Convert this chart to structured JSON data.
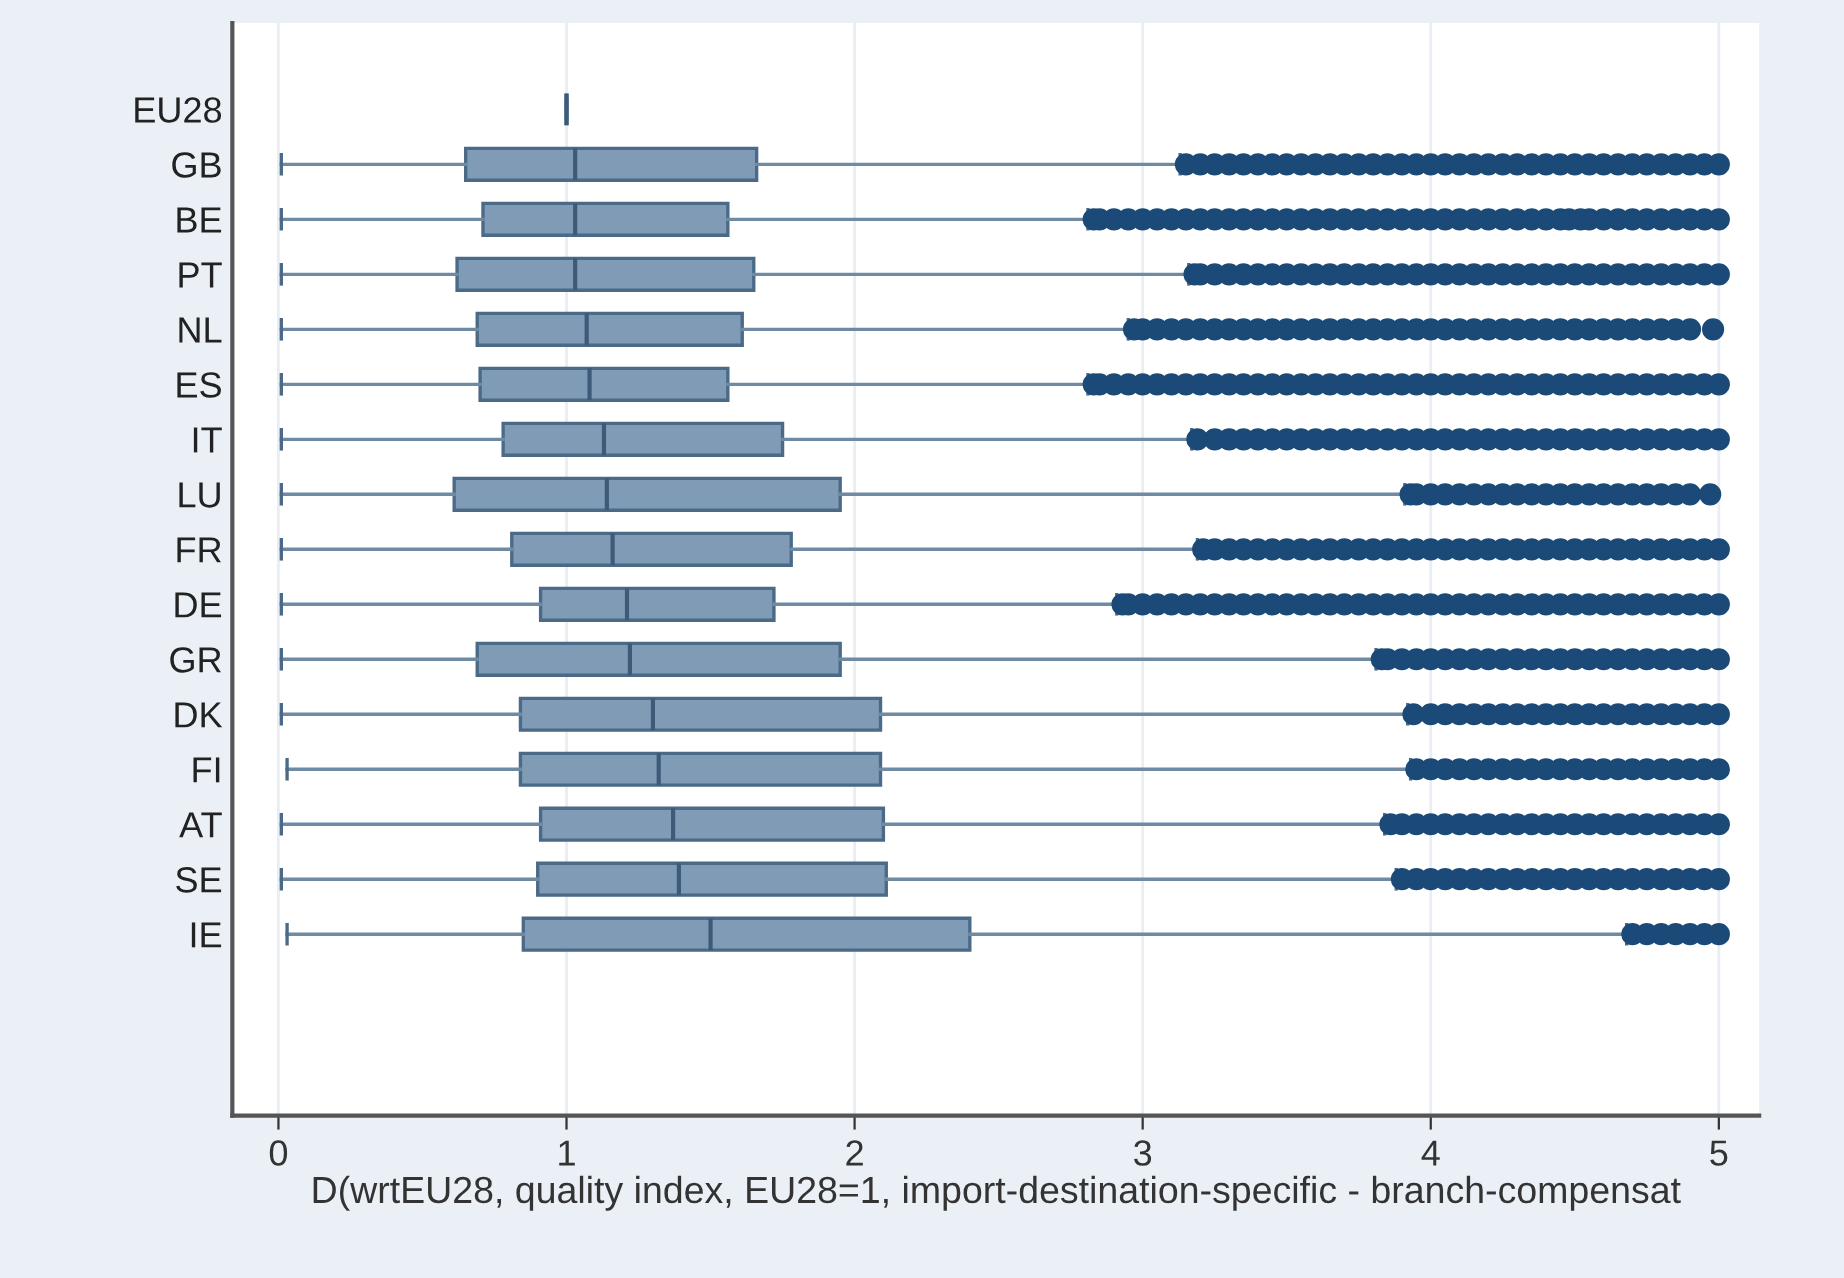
{
  "chart_data": {
    "type": "box",
    "orientation": "horizontal",
    "categories": [
      "EU28",
      "GB",
      "BE",
      "PT",
      "NL",
      "ES",
      "IT",
      "LU",
      "FR",
      "DE",
      "GR",
      "DK",
      "FI",
      "AT",
      "SE",
      "IE"
    ],
    "series": [
      {
        "color": "#7f9bb5",
        "boxes": [
          {
            "low": 1,
            "q1": 1,
            "median": 1,
            "q3": 1,
            "high": 1
          },
          {
            "low": 0.01,
            "q1": 0.65,
            "median": 1.03,
            "q3": 1.66,
            "high": 3.13,
            "outliers": [
              3.15,
              3.2,
              3.25,
              3.3,
              3.35,
              3.4,
              3.45,
              3.5,
              3.55,
              3.6,
              3.65,
              3.7,
              3.75,
              3.8,
              3.85,
              3.9,
              3.95,
              4,
              4.05,
              4.1,
              4.15,
              4.2,
              4.25,
              4.3,
              4.35,
              4.4,
              4.45,
              4.5,
              4.55,
              4.6,
              4.65,
              4.7,
              4.75,
              4.8,
              4.85,
              4.9,
              4.95,
              5
            ]
          },
          {
            "low": 0.01,
            "q1": 0.71,
            "median": 1.03,
            "q3": 1.56,
            "high": 2.81,
            "outliers": [
              2.83,
              2.85,
              2.9,
              2.95,
              3,
              3.05,
              3.1,
              3.15,
              3.2,
              3.25,
              3.3,
              3.35,
              3.4,
              3.45,
              3.5,
              3.55,
              3.6,
              3.65,
              3.7,
              3.75,
              3.8,
              3.85,
              3.9,
              3.95,
              4,
              4.05,
              4.1,
              4.15,
              4.2,
              4.25,
              4.3,
              4.35,
              4.4,
              4.45,
              4.48,
              4.52,
              4.55,
              4.6,
              4.65,
              4.7,
              4.75,
              4.8,
              4.85,
              4.9,
              4.95,
              5
            ]
          },
          {
            "low": 0.01,
            "q1": 0.62,
            "median": 1.03,
            "q3": 1.65,
            "high": 3.16,
            "outliers": [
              3.18,
              3.2,
              3.25,
              3.3,
              3.35,
              3.4,
              3.45,
              3.5,
              3.55,
              3.6,
              3.65,
              3.7,
              3.75,
              3.8,
              3.85,
              3.9,
              3.95,
              4,
              4.05,
              4.1,
              4.15,
              4.2,
              4.25,
              4.3,
              4.35,
              4.4,
              4.45,
              4.5,
              4.55,
              4.6,
              4.65,
              4.7,
              4.75,
              4.8,
              4.85,
              4.9,
              4.95,
              5
            ]
          },
          {
            "low": 0.01,
            "q1": 0.69,
            "median": 1.07,
            "q3": 1.61,
            "high": 2.95,
            "outliers": [
              2.97,
              3,
              3.05,
              3.1,
              3.15,
              3.2,
              3.25,
              3.3,
              3.35,
              3.4,
              3.45,
              3.5,
              3.55,
              3.6,
              3.65,
              3.7,
              3.75,
              3.8,
              3.85,
              3.9,
              3.95,
              4,
              4.05,
              4.1,
              4.15,
              4.2,
              4.25,
              4.3,
              4.35,
              4.4,
              4.45,
              4.5,
              4.55,
              4.6,
              4.65,
              4.7,
              4.75,
              4.8,
              4.85,
              4.9,
              4.98
            ]
          },
          {
            "low": 0.01,
            "q1": 0.7,
            "median": 1.08,
            "q3": 1.56,
            "high": 2.81,
            "outliers": [
              2.83,
              2.85,
              2.9,
              2.95,
              3,
              3.05,
              3.1,
              3.15,
              3.2,
              3.25,
              3.3,
              3.35,
              3.4,
              3.45,
              3.5,
              3.55,
              3.6,
              3.65,
              3.7,
              3.75,
              3.8,
              3.85,
              3.9,
              3.95,
              4,
              4.05,
              4.1,
              4.15,
              4.2,
              4.25,
              4.3,
              4.35,
              4.4,
              4.45,
              4.5,
              4.55,
              4.6,
              4.65,
              4.7,
              4.75,
              4.8,
              4.85,
              4.9,
              4.95,
              5
            ]
          },
          {
            "low": 0.01,
            "q1": 0.78,
            "median": 1.13,
            "q3": 1.75,
            "high": 3.17,
            "outliers": [
              3.19,
              3.25,
              3.3,
              3.35,
              3.4,
              3.45,
              3.5,
              3.55,
              3.6,
              3.65,
              3.7,
              3.75,
              3.8,
              3.85,
              3.9,
              3.95,
              4,
              4.05,
              4.1,
              4.15,
              4.2,
              4.25,
              4.3,
              4.35,
              4.4,
              4.45,
              4.5,
              4.55,
              4.6,
              4.65,
              4.7,
              4.75,
              4.8,
              4.85,
              4.9,
              4.95,
              5
            ]
          },
          {
            "low": 0.01,
            "q1": 0.61,
            "median": 1.14,
            "q3": 1.95,
            "high": 3.91,
            "outliers": [
              3.93,
              3.95,
              4,
              4.05,
              4.1,
              4.15,
              4.2,
              4.25,
              4.3,
              4.35,
              4.4,
              4.45,
              4.5,
              4.55,
              4.6,
              4.65,
              4.7,
              4.75,
              4.8,
              4.85,
              4.9,
              4.97
            ]
          },
          {
            "low": 0.01,
            "q1": 0.81,
            "median": 1.16,
            "q3": 1.78,
            "high": 3.19,
            "outliers": [
              3.21,
              3.25,
              3.3,
              3.35,
              3.4,
              3.45,
              3.5,
              3.55,
              3.6,
              3.65,
              3.7,
              3.75,
              3.8,
              3.85,
              3.9,
              3.95,
              4,
              4.05,
              4.1,
              4.15,
              4.2,
              4.25,
              4.3,
              4.35,
              4.4,
              4.45,
              4.5,
              4.55,
              4.6,
              4.65,
              4.7,
              4.75,
              4.8,
              4.85,
              4.9,
              4.95,
              5
            ]
          },
          {
            "low": 0.01,
            "q1": 0.91,
            "median": 1.21,
            "q3": 1.72,
            "high": 2.91,
            "outliers": [
              2.93,
              2.95,
              3,
              3.05,
              3.1,
              3.15,
              3.2,
              3.25,
              3.3,
              3.35,
              3.4,
              3.45,
              3.5,
              3.55,
              3.6,
              3.65,
              3.7,
              3.75,
              3.8,
              3.85,
              3.9,
              3.95,
              4,
              4.05,
              4.1,
              4.15,
              4.2,
              4.25,
              4.3,
              4.35,
              4.4,
              4.45,
              4.5,
              4.55,
              4.6,
              4.65,
              4.7,
              4.75,
              4.8,
              4.85,
              4.9,
              4.95,
              5
            ]
          },
          {
            "low": 0.01,
            "q1": 0.69,
            "median": 1.22,
            "q3": 1.95,
            "high": 3.81,
            "outliers": [
              3.83,
              3.85,
              3.9,
              3.95,
              4,
              4.05,
              4.1,
              4.15,
              4.2,
              4.25,
              4.3,
              4.35,
              4.4,
              4.45,
              4.5,
              4.55,
              4.6,
              4.65,
              4.7,
              4.75,
              4.8,
              4.85,
              4.9,
              4.95,
              5
            ]
          },
          {
            "low": 0.01,
            "q1": 0.84,
            "median": 1.3,
            "q3": 2.09,
            "high": 3.92,
            "outliers": [
              3.94,
              4,
              4.05,
              4.1,
              4.15,
              4.2,
              4.25,
              4.3,
              4.35,
              4.4,
              4.45,
              4.5,
              4.55,
              4.6,
              4.65,
              4.7,
              4.75,
              4.8,
              4.85,
              4.9,
              4.95,
              5
            ]
          },
          {
            "low": 0.03,
            "q1": 0.84,
            "median": 1.32,
            "q3": 2.09,
            "high": 3.93,
            "outliers": [
              3.95,
              4,
              4.05,
              4.1,
              4.15,
              4.2,
              4.25,
              4.3,
              4.35,
              4.4,
              4.45,
              4.5,
              4.55,
              4.6,
              4.65,
              4.7,
              4.75,
              4.8,
              4.85,
              4.9,
              4.95,
              5
            ]
          },
          {
            "low": 0.01,
            "q1": 0.91,
            "median": 1.37,
            "q3": 2.1,
            "high": 3.84,
            "outliers": [
              3.86,
              3.9,
              3.95,
              4,
              4.05,
              4.1,
              4.15,
              4.2,
              4.25,
              4.3,
              4.35,
              4.4,
              4.45,
              4.5,
              4.55,
              4.6,
              4.65,
              4.7,
              4.75,
              4.8,
              4.85,
              4.9,
              4.95,
              5
            ]
          },
          {
            "low": 0.01,
            "q1": 0.9,
            "median": 1.39,
            "q3": 2.11,
            "high": 3.88,
            "outliers": [
              3.9,
              3.95,
              4,
              4.05,
              4.1,
              4.15,
              4.2,
              4.25,
              4.3,
              4.35,
              4.4,
              4.45,
              4.5,
              4.55,
              4.6,
              4.65,
              4.7,
              4.75,
              4.8,
              4.85,
              4.9,
              4.95,
              5
            ]
          },
          {
            "low": 0.03,
            "q1": 0.85,
            "median": 1.5,
            "q3": 2.4,
            "high": 4.68,
            "outliers": [
              4.7,
              4.75,
              4.8,
              4.85,
              4.9,
              4.95,
              5
            ]
          }
        ]
      }
    ],
    "xlim": [
      -0.16,
      5.14
    ],
    "xticks": [
      0,
      1,
      2,
      3,
      4,
      5
    ],
    "xlabel": "D(wrtEU28, quality index, EU28=1, import-destination-specific - branch-compensat",
    "grid": "x",
    "marker": "circle"
  }
}
